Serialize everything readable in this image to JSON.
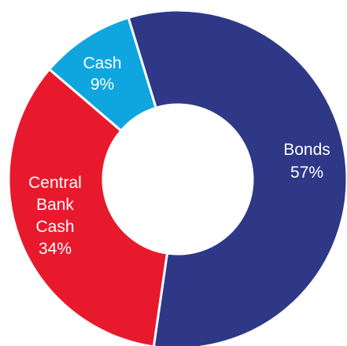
{
  "chart_data": {
    "type": "pie",
    "style": "donut",
    "slices": [
      {
        "name": "Bonds",
        "value": 57,
        "value_label": "57%",
        "color": "#2e3887"
      },
      {
        "name": "Central Bank Cash",
        "label_lines": [
          "Central",
          "Bank",
          "Cash"
        ],
        "value": 34,
        "value_label": "34%",
        "color": "#e8192c"
      },
      {
        "name": "Cash",
        "value": 9,
        "value_label": "9%",
        "color": "#0fa6e0"
      }
    ],
    "title": "",
    "legend": "none"
  }
}
